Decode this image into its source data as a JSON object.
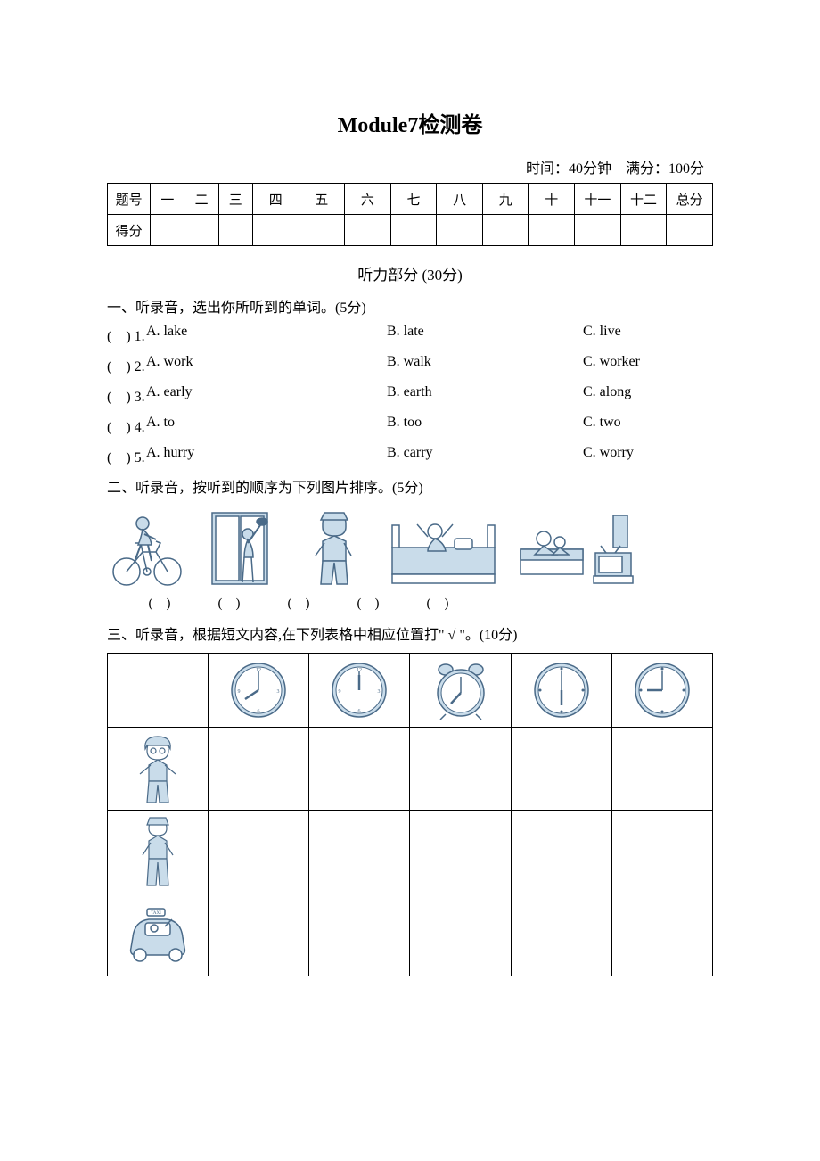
{
  "title": "Module7检测卷",
  "meta": "时间：40分钟　满分：100分",
  "score_table": {
    "row1": [
      "题号",
      "一",
      "二",
      "三",
      "四",
      "五",
      "六",
      "七",
      "八",
      "九",
      "十",
      "十一",
      "十二",
      "总分"
    ],
    "row2_label": "得分"
  },
  "listening_section": "听力部分 (30分)",
  "q1": {
    "heading": "一、听录音，选出你所听到的单词。(5分)",
    "items": [
      {
        "blank": "(　) 1.",
        "A": "A. lake",
        "B": "B. late",
        "C": "C. live"
      },
      {
        "blank": "(　) 2.",
        "A": "A. work",
        "B": "B. walk",
        "C": "C. worker"
      },
      {
        "blank": "(　) 3.",
        "A": "A. early",
        "B": "B. earth",
        "C": "C. along"
      },
      {
        "blank": "(　) 4.",
        "A": "A. to",
        "B": "B. too",
        "C": "C. two"
      },
      {
        "blank": "(　) 5.",
        "A": "A. hurry",
        "B": "B. carry",
        "C": "C. worry"
      }
    ]
  },
  "q2": {
    "heading": "二、听录音，按听到的顺序为下列图片排序。(5分)",
    "blanks": [
      "(　)",
      "(　)",
      "(　)",
      "(　)",
      "(　)"
    ]
  },
  "q3": {
    "heading": "三、听录音，根据短文内容,在下列表格中相应位置打\" √ \"。(10分)"
  },
  "colors": {
    "line": "#4a6a88",
    "fill": "#c9dcea",
    "text": "#000000"
  }
}
